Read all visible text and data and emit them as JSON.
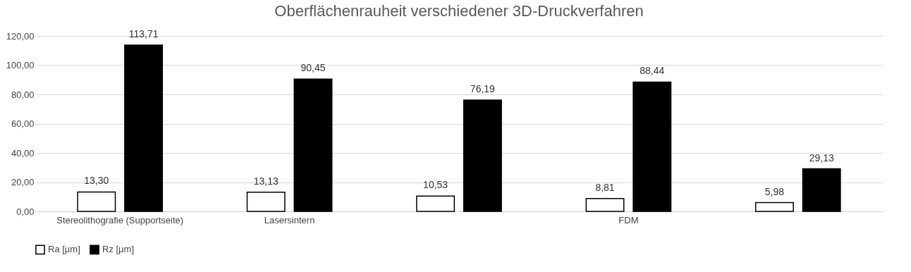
{
  "chart_data": {
    "type": "bar",
    "title": "Oberflächenrauheit verschiedener 3D-Druckverfahren",
    "categories": [
      "Stereolithografie (Supportseite)",
      "Lasersintern",
      null,
      "FDM",
      null
    ],
    "series": [
      {
        "name": "Ra [µm]",
        "color": "#ffffff",
        "values": [
          13.3,
          13.13,
          10.53,
          8.81,
          5.98
        ],
        "value_labels": [
          "13,30",
          "13,13",
          "10,53",
          "8,81",
          "5,98"
        ]
      },
      {
        "name": "Rz [µm]",
        "color": "#000000",
        "values": [
          113.71,
          90.45,
          76.19,
          88.44,
          29.13
        ],
        "value_labels": [
          "113,71",
          "90,45",
          "76,19",
          "88,44",
          "29,13"
        ]
      }
    ],
    "ylim": [
      0,
      120
    ],
    "yticks": [
      {
        "value": 0,
        "label": "0,00"
      },
      {
        "value": 20,
        "label": "20,00"
      },
      {
        "value": 40,
        "label": "40,00"
      },
      {
        "value": 60,
        "label": "60,00"
      },
      {
        "value": 80,
        "label": "80,00"
      },
      {
        "value": 100,
        "label": "100,00"
      },
      {
        "value": 120,
        "label": "120,00"
      }
    ],
    "grid": "y",
    "legend": "bottom"
  }
}
